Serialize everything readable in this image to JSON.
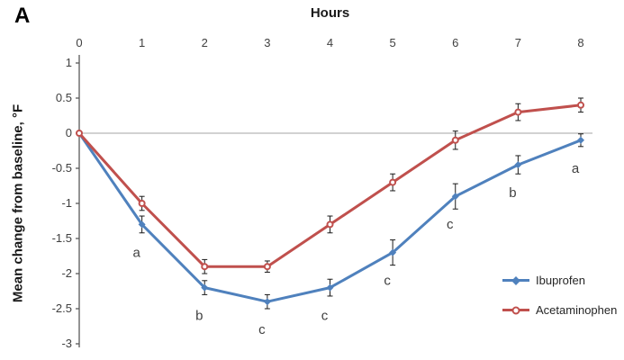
{
  "panel_label": "A",
  "chart_data": {
    "type": "line",
    "title": "",
    "xlabel": "Hours",
    "ylabel": "Mean change from baseline, °F",
    "x": [
      0,
      1,
      2,
      3,
      4,
      5,
      6,
      7,
      8
    ],
    "xlim": [
      0,
      8
    ],
    "ylim": [
      -3,
      1
    ],
    "xticks": [
      0,
      1,
      2,
      3,
      4,
      5,
      6,
      7,
      8
    ],
    "yticks": [
      1,
      0.5,
      0,
      -0.5,
      -1,
      -1.5,
      -2,
      -2.5,
      -3
    ],
    "ytick_labels": [
      "1",
      "0.5",
      "0",
      "-0.5",
      "-1",
      "-1.5",
      "-2",
      "-2.5",
      "-3"
    ],
    "grid": false,
    "zero_line": true,
    "legend_position": "right",
    "series": [
      {
        "name": "Ibuprofen",
        "color": "#4F81BD",
        "marker": "diamond",
        "values": [
          0,
          -1.3,
          -2.2,
          -2.4,
          -2.2,
          -1.7,
          -0.9,
          -0.45,
          -0.1
        ],
        "errors": [
          0,
          0.12,
          0.1,
          0.1,
          0.12,
          0.18,
          0.18,
          0.13,
          0.09
        ]
      },
      {
        "name": "Acetaminophen",
        "color": "#C0504D",
        "marker": "circle",
        "values": [
          0,
          -1.0,
          -1.9,
          -1.9,
          -1.3,
          -0.7,
          -0.1,
          0.3,
          0.4
        ],
        "errors": [
          0,
          0.1,
          0.1,
          0.08,
          0.12,
          0.12,
          0.13,
          0.12,
          0.1
        ]
      }
    ],
    "annotations": [
      {
        "x": 1,
        "label": "a"
      },
      {
        "x": 2,
        "label": "b"
      },
      {
        "x": 3,
        "label": "c"
      },
      {
        "x": 4,
        "label": "c"
      },
      {
        "x": 5,
        "label": "c"
      },
      {
        "x": 6,
        "label": "c"
      },
      {
        "x": 7,
        "label": "b"
      },
      {
        "x": 8,
        "label": "a"
      }
    ]
  }
}
